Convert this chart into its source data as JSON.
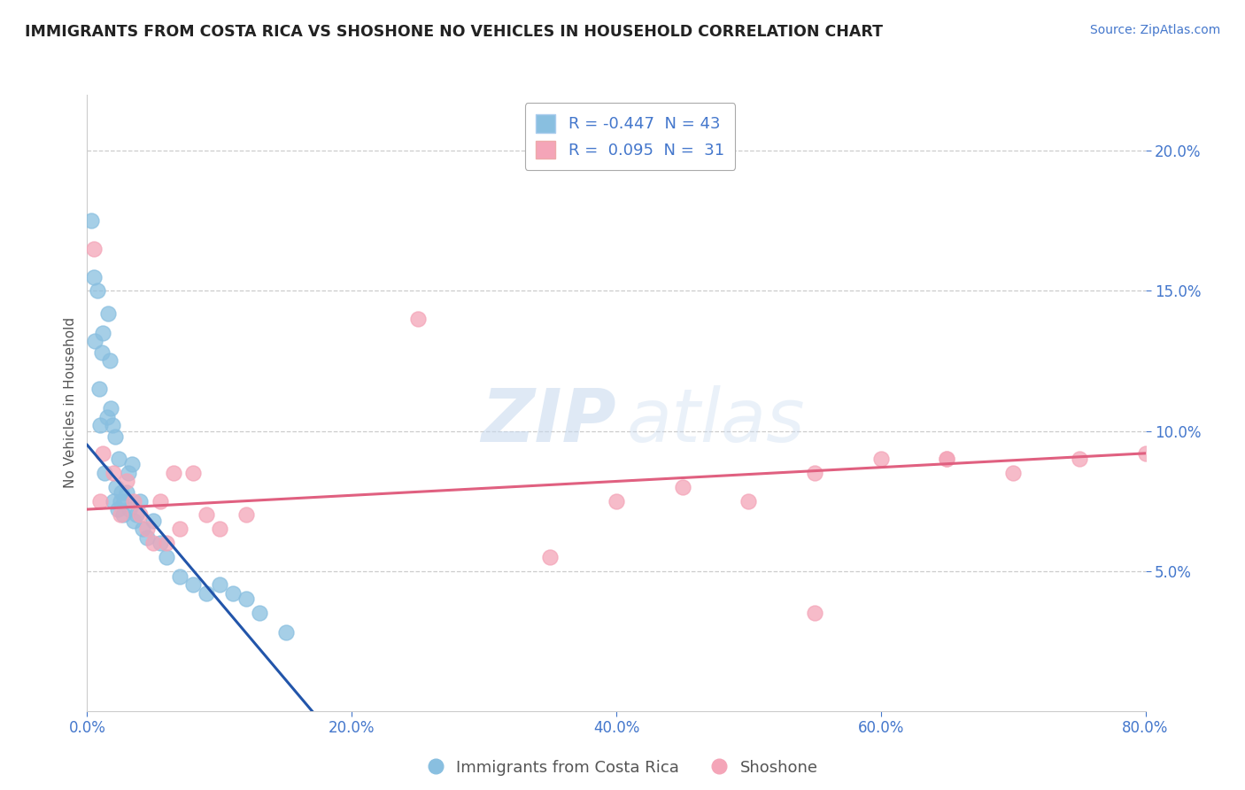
{
  "title": "IMMIGRANTS FROM COSTA RICA VS SHOSHONE NO VEHICLES IN HOUSEHOLD CORRELATION CHART",
  "source": "Source: ZipAtlas.com",
  "ylabel": "No Vehicles in Household",
  "x_tick_labels": [
    "0.0%",
    "20.0%",
    "40.0%",
    "60.0%",
    "80.0%"
  ],
  "x_tick_values": [
    0,
    20,
    40,
    60,
    80
  ],
  "y_tick_labels_right": [
    "20.0%",
    "15.0%",
    "10.0%",
    "5.0%"
  ],
  "y_tick_values_right": [
    20,
    15,
    10,
    5
  ],
  "xlim": [
    0,
    80
  ],
  "ylim": [
    0,
    22
  ],
  "legend_label1": "Immigrants from Costa Rica",
  "legend_label2": "Shoshone",
  "r1": -0.447,
  "n1": 43,
  "r2": 0.095,
  "n2": 31,
  "color_blue": "#89bfe0",
  "color_pink": "#f4a5b8",
  "color_blue_line": "#2255aa",
  "color_pink_line": "#e06080",
  "background_color": "#ffffff",
  "grid_color": "#cccccc",
  "blue_scatter_x": [
    0.3,
    0.5,
    0.6,
    0.8,
    0.9,
    1.0,
    1.1,
    1.2,
    1.3,
    1.5,
    1.6,
    1.7,
    1.8,
    1.9,
    2.0,
    2.1,
    2.2,
    2.3,
    2.4,
    2.5,
    2.6,
    2.7,
    2.8,
    3.0,
    3.1,
    3.2,
    3.4,
    3.5,
    3.7,
    4.0,
    4.2,
    4.5,
    5.0,
    5.5,
    6.0,
    7.0,
    8.0,
    9.0,
    10.0,
    11.0,
    12.0,
    13.0,
    15.0
  ],
  "blue_scatter_y": [
    17.5,
    15.5,
    13.2,
    15.0,
    11.5,
    10.2,
    12.8,
    13.5,
    8.5,
    10.5,
    14.2,
    12.5,
    10.8,
    10.2,
    7.5,
    9.8,
    8.0,
    7.2,
    9.0,
    7.5,
    7.8,
    7.0,
    7.5,
    7.8,
    8.5,
    7.2,
    8.8,
    6.8,
    7.0,
    7.5,
    6.5,
    6.2,
    6.8,
    6.0,
    5.5,
    4.8,
    4.5,
    4.2,
    4.5,
    4.2,
    4.0,
    3.5,
    2.8
  ],
  "pink_scatter_x": [
    0.5,
    1.0,
    1.2,
    2.0,
    2.5,
    3.0,
    3.5,
    4.0,
    4.5,
    5.0,
    5.5,
    6.0,
    6.5,
    7.0,
    8.0,
    9.0,
    10.0,
    12.0,
    25.0,
    55.0,
    60.0,
    65.0,
    35.0,
    40.0,
    45.0,
    50.0,
    55.0,
    65.0,
    70.0,
    75.0,
    80.0
  ],
  "pink_scatter_y": [
    16.5,
    7.5,
    9.2,
    8.5,
    7.0,
    8.2,
    7.5,
    7.0,
    6.5,
    6.0,
    7.5,
    6.0,
    8.5,
    6.5,
    8.5,
    7.0,
    6.5,
    7.0,
    14.0,
    3.5,
    9.0,
    9.0,
    5.5,
    7.5,
    8.0,
    7.5,
    8.5,
    9.0,
    8.5,
    9.0,
    9.2
  ],
  "blue_line_x0": 0.0,
  "blue_line_x1": 17.0,
  "blue_line_y0": 9.5,
  "blue_line_y1": 0.0,
  "pink_line_x0": 0.0,
  "pink_line_x1": 80.0,
  "pink_line_y0": 7.2,
  "pink_line_y1": 9.2
}
